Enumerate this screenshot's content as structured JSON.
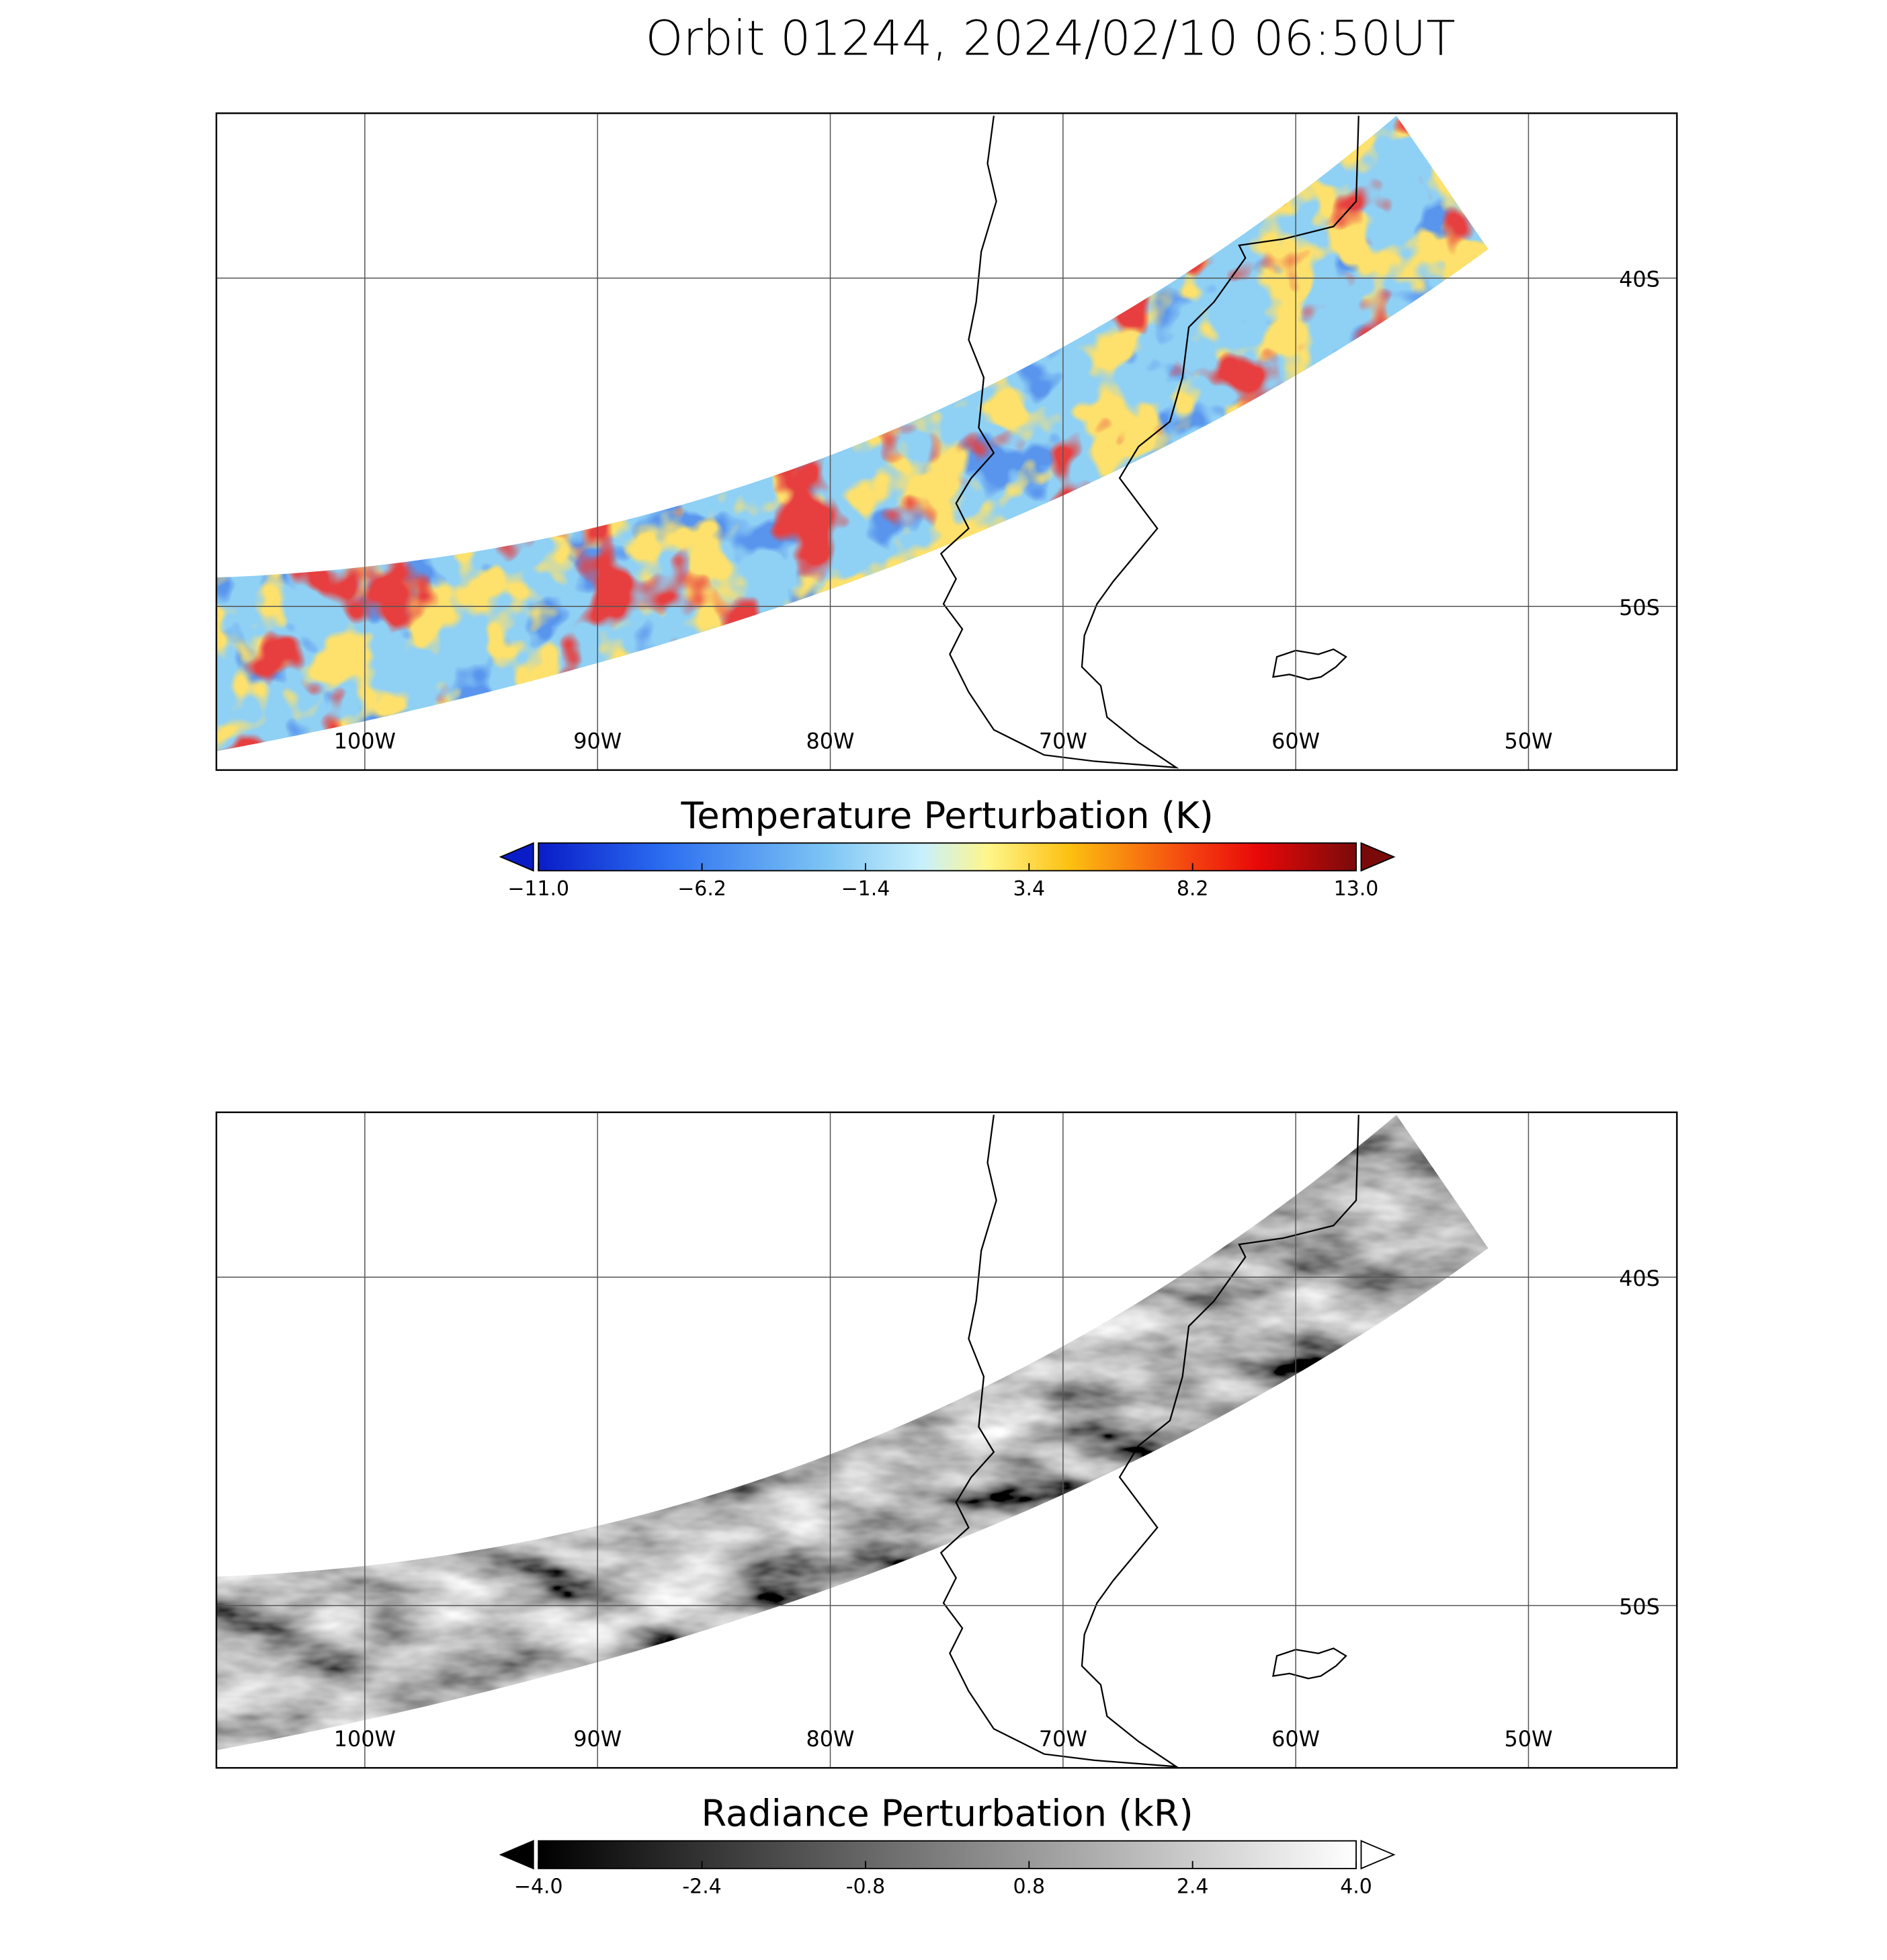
{
  "title": "Orbit 01244, 2024/02/10 06:50UT",
  "panels": [
    {
      "lon_ticks": [
        {
          "value": -100,
          "label": "100W"
        },
        {
          "value": -90,
          "label": "90W"
        },
        {
          "value": -80,
          "label": "80W"
        },
        {
          "value": -70,
          "label": "70W"
        },
        {
          "value": -60,
          "label": "60W"
        },
        {
          "value": -50,
          "label": "50W"
        }
      ],
      "lat_ticks": [
        {
          "value": -40,
          "label": "40S"
        },
        {
          "value": -50,
          "label": "50S"
        }
      ],
      "colorbar": {
        "title": "Temperature Perturbation (K)",
        "ticks": [
          {
            "value": -11.0,
            "label": "−11.0"
          },
          {
            "value": -6.2,
            "label": "−6.2"
          },
          {
            "value": -1.4,
            "label": "−1.4"
          },
          3.4,
          8.2,
          {
            "value": 13.0,
            "label": "13.0"
          }
        ]
      }
    },
    {
      "lon_ticks": [
        {
          "value": -100,
          "label": "100W"
        },
        {
          "value": -90,
          "label": "90W"
        },
        {
          "value": -80,
          "label": "80W"
        },
        {
          "value": -70,
          "label": "70W"
        },
        {
          "value": -60,
          "label": "60W"
        },
        {
          "value": -50,
          "label": "50W"
        }
      ],
      "lat_ticks": [
        {
          "value": -40,
          "label": "40S"
        },
        {
          "value": -50,
          "label": "50S"
        }
      ],
      "colorbar": {
        "title": "Radiance Perturbation (kR)",
        "ticks": [
          {
            "value": -4.0,
            "label": "−4.0"
          },
          -2.4,
          -0.8,
          0.8,
          2.4,
          {
            "value": 4.0,
            "label": "4.0"
          }
        ]
      }
    }
  ]
}
